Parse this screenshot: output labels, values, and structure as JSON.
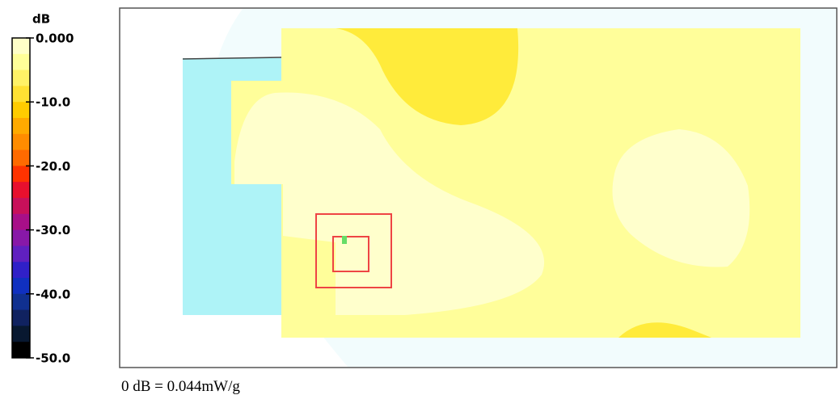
{
  "legend": {
    "unit": "dB",
    "ticks": [
      "0.000",
      "-10.0",
      "-20.0",
      "-30.0",
      "-40.0",
      "-50.0"
    ]
  },
  "caption": "0 dB = 0.044mW/g"
}
